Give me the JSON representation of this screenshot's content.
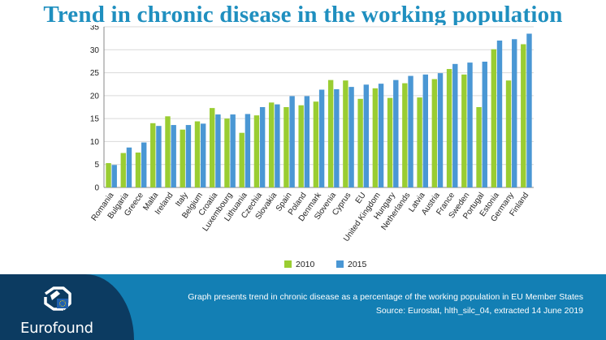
{
  "header": {
    "title": "Trend in chronic disease in the working population"
  },
  "footer": {
    "logo_text": "Eurofound",
    "caption_line1": "Graph presents trend in chronic disease as a percentage of the working population in EU Member States",
    "caption_line2": "Source: Eurostat, hlth_silc_04, extracted 14 June 2019"
  },
  "colors": {
    "brand_blue": "#1f8fbf",
    "footer_blue": "#137fb4",
    "footer_dark": "#0c3b61",
    "series_2010": "#9acd32",
    "series_2015": "#4a97d4"
  },
  "chart_data": {
    "type": "bar",
    "title": "",
    "xlabel": "",
    "ylabel": "",
    "ylim": [
      0,
      35
    ],
    "yticks": [
      0,
      5,
      10,
      15,
      20,
      25,
      30,
      35
    ],
    "grid": "horizontal",
    "legend_position": "bottom",
    "categories": [
      "Romania",
      "Bulgaria",
      "Greece",
      "Malta",
      "Ireland",
      "Italy",
      "Belgium",
      "Croatia",
      "Luxembourg",
      "Lithuania",
      "Czechia",
      "Slovakia",
      "Spain",
      "Poland",
      "Denmark",
      "Slovenia",
      "Cyprus",
      "EU",
      "United Kingdom",
      "Hungary",
      "Netherlands",
      "Latvia",
      "Austria",
      "France",
      "Sweden",
      "Portugal",
      "Estonia",
      "Germany",
      "Finland"
    ],
    "series": [
      {
        "name": "2010",
        "color": "#9acd32",
        "values": [
          5.3,
          7.5,
          7.6,
          14.0,
          15.5,
          12.6,
          14.4,
          17.3,
          15.0,
          11.9,
          15.7,
          18.5,
          17.5,
          17.9,
          18.7,
          23.4,
          23.3,
          19.3,
          21.6,
          19.5,
          22.7,
          19.6,
          23.6,
          25.8,
          24.6,
          17.5,
          30.1,
          23.3,
          31.2
        ]
      },
      {
        "name": "2015",
        "color": "#4a97d4",
        "values": [
          4.9,
          8.7,
          9.8,
          13.4,
          13.6,
          13.6,
          13.9,
          15.9,
          15.9,
          16.0,
          17.5,
          18.1,
          19.9,
          19.9,
          21.3,
          21.4,
          21.9,
          22.4,
          22.6,
          23.4,
          24.3,
          24.6,
          24.9,
          26.9,
          27.2,
          27.4,
          32.0,
          32.3,
          33.5
        ]
      }
    ]
  }
}
